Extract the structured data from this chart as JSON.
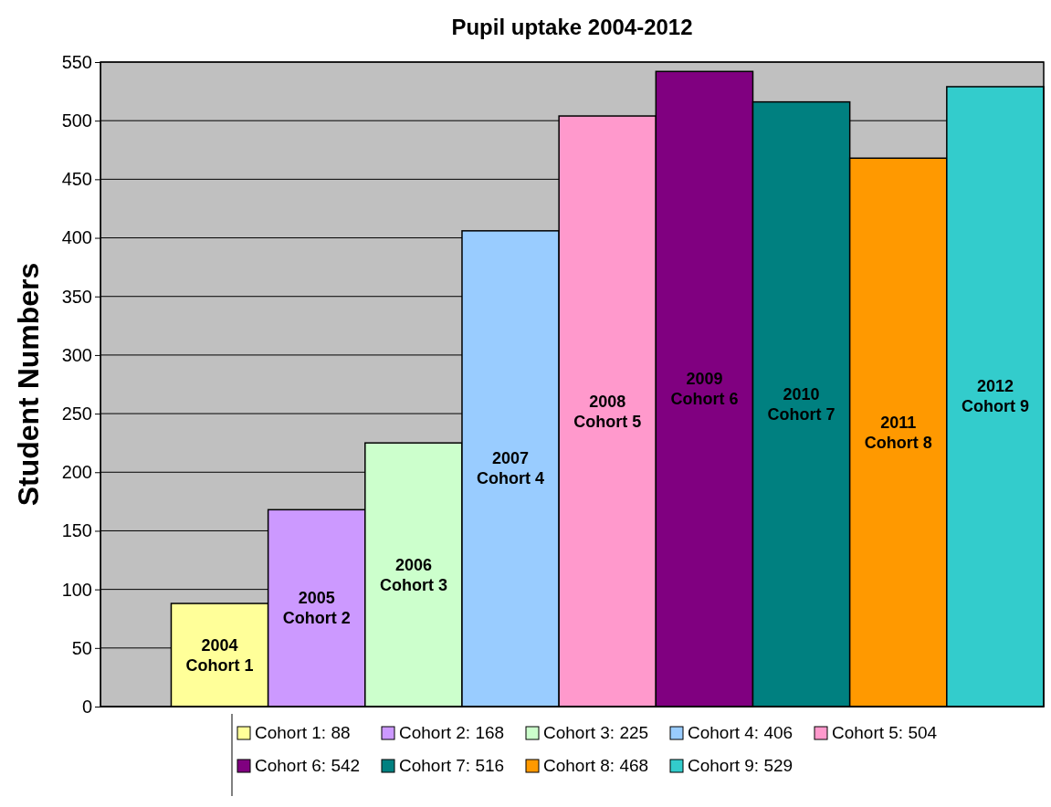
{
  "chart_data": {
    "type": "bar",
    "title": "Pupil uptake 2004-2012",
    "ylabel": "Student Numbers",
    "categories": [
      null
    ],
    "series": [
      {
        "name": "Cohort 1: 88",
        "color": "#ffff99",
        "values": [
          88
        ]
      },
      {
        "name": "Cohort 2: 168",
        "color": "#cc99ff",
        "values": [
          168
        ]
      },
      {
        "name": "Cohort 3: 225",
        "color": "#ccffcc",
        "values": [
          225
        ]
      },
      {
        "name": "Cohort 4: 406",
        "color": "#99ccff",
        "values": [
          406
        ]
      },
      {
        "name": "Cohort 5: 504",
        "color": "#ff99cc",
        "values": [
          504
        ]
      },
      {
        "name": "Cohort 6: 542",
        "color": "#800080",
        "values": [
          542
        ]
      },
      {
        "name": "Cohort 7: 516",
        "color": "#008080",
        "values": [
          516
        ]
      },
      {
        "name": "Cohort 8: 468",
        "color": "#ff9900",
        "values": [
          468
        ]
      },
      {
        "name": "Cohort 9: 529",
        "color": "#33cccc",
        "values": [
          529
        ]
      }
    ],
    "ylim": [
      0,
      550
    ],
    "yticks": [
      0,
      50,
      100,
      150,
      200,
      250,
      300,
      350,
      400,
      450,
      500,
      550
    ],
    "annotations": [
      "2004\nCohort 1",
      "2005\nCohort 2",
      "2006\nCohort 3",
      "2007\nCohort 4",
      "2008\nCohort 5",
      "2009\nCohort 6",
      "2010\nCohort 7",
      "2011\nCohort 8",
      "2012\nCohort 9"
    ],
    "grid": "y",
    "legend": "bottom"
  }
}
